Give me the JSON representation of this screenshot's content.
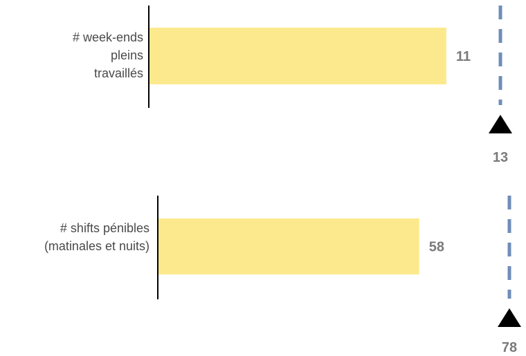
{
  "chart_data": {
    "type": "bar",
    "orientation": "horizontal",
    "categories": [
      [
        "# week-ends",
        "pleins",
        "travaillés"
      ],
      [
        "# shifts pénibles",
        "(matinales et nuits)"
      ]
    ],
    "series": [
      {
        "values": [
          11,
          58
        ]
      }
    ],
    "targets": [
      13,
      78
    ],
    "value_labels": [
      "11",
      "58"
    ],
    "target_labels": [
      "13",
      "78"
    ],
    "independent_scales": true,
    "colors": {
      "bar": "#fde98d",
      "target_line": "#6f8db8",
      "target_marker": "#000000",
      "axis": "#000000",
      "category_text": "#4a4a4a",
      "value_text": "#7a7a7a"
    }
  }
}
